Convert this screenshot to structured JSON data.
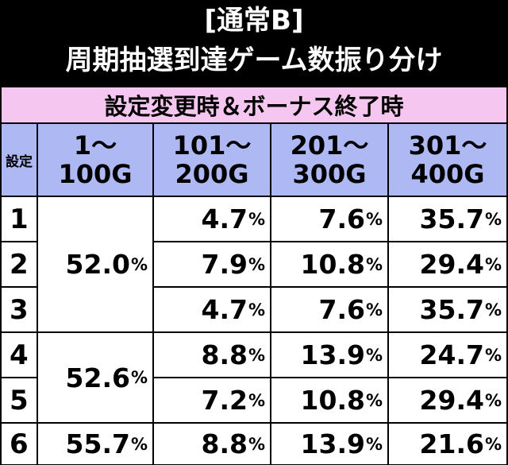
{
  "title": {
    "line1": "[通常B]",
    "line2": "周期抽選到達ゲーム数振り分け"
  },
  "section_label": "設定変更時＆ボーナス終了時",
  "table": {
    "setting_header": "設定",
    "columns": [
      {
        "line1": "1〜",
        "line2": "100G"
      },
      {
        "line1": "101〜",
        "line2": "200G"
      },
      {
        "line1": "201〜",
        "line2": "300G"
      },
      {
        "line1": "301〜",
        "line2": "400G"
      }
    ],
    "settings": [
      "1",
      "2",
      "3",
      "4",
      "5",
      "6"
    ],
    "col1_merged": [
      {
        "value": "52.0",
        "unit": "%"
      },
      {
        "value": "52.6",
        "unit": "%"
      },
      {
        "value": "55.7",
        "unit": "%"
      }
    ],
    "rows": [
      {
        "c2": "4.7",
        "c3": "7.6",
        "c4": "35.7"
      },
      {
        "c2": "7.9",
        "c3": "10.8",
        "c4": "29.4"
      },
      {
        "c2": "4.7",
        "c3": "7.6",
        "c4": "35.7"
      },
      {
        "c2": "8.8",
        "c3": "13.9",
        "c4": "24.7"
      },
      {
        "c2": "7.2",
        "c3": "10.8",
        "c4": "29.4"
      },
      {
        "c2": "8.8",
        "c3": "13.9",
        "c4": "21.6"
      }
    ],
    "unit": "%"
  },
  "colors": {
    "background": "#000000",
    "section_band": "#f5c7f0",
    "header_cells": "#aeb9f4",
    "body_cells": "#ffffff"
  }
}
